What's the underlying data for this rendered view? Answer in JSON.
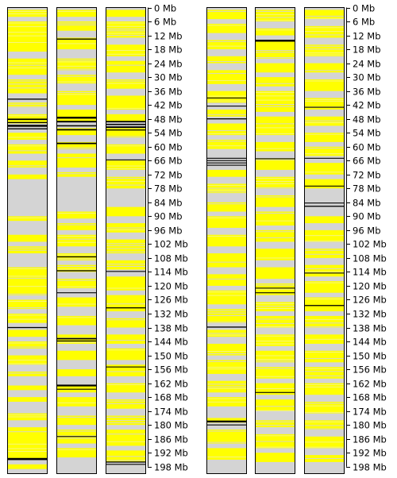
{
  "colors": {
    "background": "#ffffff",
    "track_base": "#d4d4d4",
    "band_yellow": "#ffff00",
    "band_yellow_light": "#f4f490",
    "marker": "#000000",
    "border": "#000000"
  },
  "scale": {
    "unit": "Mb",
    "min": 0,
    "max": 201,
    "ticks": [
      0,
      6,
      12,
      18,
      24,
      30,
      36,
      42,
      48,
      54,
      60,
      66,
      72,
      78,
      84,
      90,
      96,
      102,
      108,
      114,
      120,
      126,
      132,
      138,
      144,
      150,
      156,
      162,
      168,
      174,
      180,
      186,
      192,
      198
    ],
    "tick_labels": [
      "0 Mb",
      "6 Mb",
      "12 Mb",
      "18 Mb",
      "24 Mb",
      "30 Mb",
      "36 Mb",
      "42 Mb",
      "48 Mb",
      "54 Mb",
      "60 Mb",
      "66 Mb",
      "72 Mb",
      "78 Mb",
      "84 Mb",
      "90 Mb",
      "96 Mb",
      "102 Mb",
      "108 Mb",
      "114 Mb",
      "120 Mb",
      "126 Mb",
      "132 Mb",
      "138 Mb",
      "144 Mb",
      "150 Mb",
      "156 Mb",
      "162 Mb",
      "168 Mb",
      "174 Mb",
      "180 Mb",
      "186 Mb",
      "192 Mb",
      "198 Mb"
    ]
  },
  "panels": [
    {
      "tracks": [
        {
          "yellow_regions": [
            [
              1,
              4
            ],
            [
              6,
              19
            ],
            [
              22,
              29
            ],
            [
              31,
              37
            ],
            [
              41,
              43
            ],
            [
              46,
              50
            ],
            [
              54,
              57
            ],
            [
              59,
              63
            ],
            [
              66,
              69
            ],
            [
              72,
              74
            ],
            [
              90,
              92
            ],
            [
              98,
              101
            ],
            [
              103,
              106
            ],
            [
              112,
              124
            ],
            [
              126,
              130
            ],
            [
              132,
              136
            ],
            [
              139,
              142
            ],
            [
              144,
              147
            ],
            [
              150,
              154
            ],
            [
              157,
              159
            ],
            [
              163,
              165
            ],
            [
              168,
              170
            ],
            [
              175,
              178
            ],
            [
              181,
              195
            ],
            [
              197,
              199
            ]
          ],
          "markers": [
            [
              39.5,
              0.6
            ],
            [
              48.2,
              0.8
            ],
            [
              49.6,
              0.6
            ],
            [
              51.0,
              1.1
            ],
            [
              52.3,
              0.6
            ],
            [
              138.0,
              0.6
            ],
            [
              194.7,
              1.2
            ]
          ]
        },
        {
          "yellow_regions": [
            [
              1,
              4
            ],
            [
              6,
              10
            ],
            [
              13,
              18
            ],
            [
              22,
              27
            ],
            [
              29,
              33
            ],
            [
              36,
              42
            ],
            [
              44,
              49
            ],
            [
              52,
              55
            ],
            [
              58,
              61
            ],
            [
              63,
              69
            ],
            [
              71,
              73
            ],
            [
              88,
              91
            ],
            [
              93,
              96
            ],
            [
              98,
              103
            ],
            [
              106,
              109
            ],
            [
              111,
              114
            ],
            [
              117,
              121
            ],
            [
              125,
              129
            ],
            [
              133,
              137
            ],
            [
              141,
              145
            ],
            [
              148,
              152
            ],
            [
              156,
              159
            ],
            [
              163,
              166
            ],
            [
              168,
              172
            ],
            [
              176,
              180
            ],
            [
              182,
              188
            ],
            [
              190,
              194
            ]
          ],
          "markers": [
            [
              13.6,
              0.6
            ],
            [
              47.5,
              1.1
            ],
            [
              49.2,
              0.9
            ],
            [
              51.0,
              0.7
            ],
            [
              52.7,
              0.8
            ],
            [
              58.6,
              0.8
            ],
            [
              107.5,
              0.6
            ],
            [
              113.5,
              0.6
            ],
            [
              123.0,
              0.5
            ],
            [
              142.8,
              0.8
            ],
            [
              143.8,
              0.6
            ],
            [
              163.0,
              1.0
            ],
            [
              164.6,
              0.5
            ],
            [
              185.0,
              0.5
            ]
          ]
        },
        {
          "yellow_regions": [
            [
              1,
              4
            ],
            [
              6,
              13
            ],
            [
              16,
              21
            ],
            [
              23,
              28
            ],
            [
              31,
              35
            ],
            [
              38,
              44
            ],
            [
              46,
              49
            ],
            [
              52,
              56
            ],
            [
              59,
              63
            ],
            [
              66,
              70
            ],
            [
              73,
              78
            ],
            [
              86,
              90
            ],
            [
              93,
              97
            ],
            [
              100,
              106
            ],
            [
              109,
              113
            ],
            [
              116,
              122
            ],
            [
              124,
              131
            ],
            [
              134,
              138
            ],
            [
              141,
              145
            ],
            [
              147,
              152
            ],
            [
              154,
              159
            ],
            [
              162,
              166
            ],
            [
              169,
              173
            ],
            [
              176,
              180
            ],
            [
              182,
              189
            ],
            [
              191,
              196
            ]
          ],
          "markers": [
            [
              49.2,
              0.8
            ],
            [
              50.4,
              0.7
            ],
            [
              51.6,
              0.9
            ],
            [
              52.8,
              0.6
            ],
            [
              65.7,
              0.5
            ],
            [
              113.8,
              0.5
            ],
            [
              129.5,
              0.6
            ],
            [
              155.0,
              0.5
            ],
            [
              196.0,
              0.6
            ],
            [
              197.0,
              0.5
            ]
          ]
        }
      ]
    },
    {
      "tracks": [
        {
          "yellow_regions": [
            [
              1,
              5
            ],
            [
              7,
              11
            ],
            [
              14,
              18
            ],
            [
              21,
              24
            ],
            [
              27,
              33
            ],
            [
              36,
              41
            ],
            [
              44,
              47
            ],
            [
              50,
              55
            ],
            [
              57,
              61
            ],
            [
              70,
              73
            ],
            [
              76,
              80
            ],
            [
              84,
              88
            ],
            [
              90,
              95
            ],
            [
              98,
              103
            ],
            [
              106,
              112
            ],
            [
              115,
              120
            ],
            [
              122,
              128
            ],
            [
              130,
              136
            ],
            [
              139,
              142
            ],
            [
              145,
              150
            ],
            [
              152,
              158
            ],
            [
              161,
              166
            ],
            [
              168,
              172
            ],
            [
              177,
              179
            ],
            [
              182,
              188
            ],
            [
              190,
              195
            ]
          ],
          "markers": [
            [
              39.0,
              0.5
            ],
            [
              42.5,
              0.5
            ],
            [
              48.0,
              0.6
            ],
            [
              65.0,
              0.5
            ],
            [
              66.0,
              0.5
            ],
            [
              67.0,
              0.5
            ],
            [
              68.0,
              0.5
            ],
            [
              137.8,
              0.6
            ],
            [
              178.5,
              1.0
            ],
            [
              180.0,
              0.5
            ]
          ]
        },
        {
          "yellow_regions": [
            [
              1,
              6
            ],
            [
              9,
              12
            ],
            [
              14,
              22
            ],
            [
              24,
              28
            ],
            [
              30,
              34
            ],
            [
              36,
              45
            ],
            [
              47,
              55
            ],
            [
              58,
              62
            ],
            [
              65,
              70
            ],
            [
              73,
              78
            ],
            [
              81,
              86
            ],
            [
              88,
              94
            ],
            [
              96,
              101
            ],
            [
              104,
              109
            ],
            [
              112,
              117
            ],
            [
              119,
              124
            ],
            [
              127,
              131
            ],
            [
              133,
              138
            ],
            [
              141,
              146
            ],
            [
              148,
              153
            ],
            [
              155,
              160
            ],
            [
              162,
              167
            ],
            [
              169,
              174
            ],
            [
              178,
              181
            ],
            [
              184,
              190
            ],
            [
              192,
              196
            ]
          ],
          "markers": [
            [
              14.3,
              1.1
            ],
            [
              65.2,
              0.5
            ],
            [
              121.0,
              0.5
            ],
            [
              123.0,
              0.5
            ],
            [
              166.0,
              0.5
            ]
          ]
        },
        {
          "yellow_regions": [
            [
              1,
              5
            ],
            [
              8,
              13
            ],
            [
              16,
              21
            ],
            [
              24,
              28
            ],
            [
              31,
              36
            ],
            [
              39,
              44
            ],
            [
              47,
              51
            ],
            [
              54,
              58
            ],
            [
              60,
              64
            ],
            [
              67,
              72
            ],
            [
              74,
              78
            ],
            [
              90,
              93
            ],
            [
              96,
              101
            ],
            [
              104,
              108
            ],
            [
              111,
              116
            ],
            [
              118,
              123
            ],
            [
              125,
              131
            ],
            [
              133,
              138
            ],
            [
              141,
              145
            ],
            [
              148,
              153
            ],
            [
              155,
              160
            ],
            [
              162,
              167
            ],
            [
              170,
              175
            ],
            [
              178,
              182
            ],
            [
              185,
              190
            ],
            [
              193,
              196
            ]
          ],
          "markers": [
            [
              43.0,
              0.5
            ],
            [
              65.0,
              0.5
            ],
            [
              77.0,
              0.5
            ],
            [
              84.3,
              0.5
            ],
            [
              85.7,
              0.6
            ],
            [
              114.5,
              0.5
            ],
            [
              128.5,
              0.6
            ]
          ]
        }
      ]
    }
  ]
}
